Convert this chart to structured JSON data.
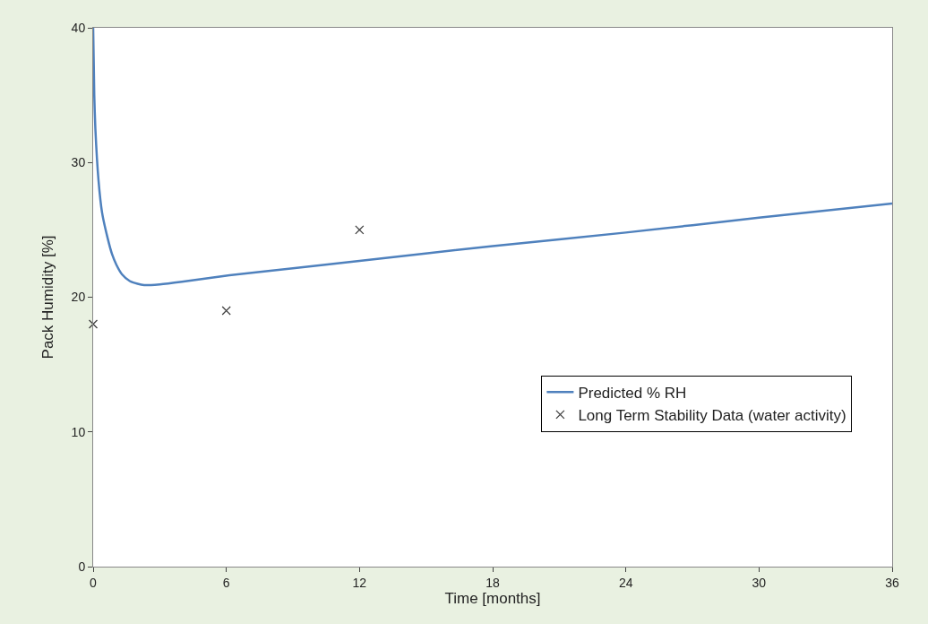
{
  "chart_data": {
    "type": "scatter",
    "xlabel": "Time [months]",
    "ylabel": "Pack Humidity [%]",
    "xlim": [
      0,
      36
    ],
    "xticks": [
      0,
      6,
      12,
      18,
      24,
      30,
      36
    ],
    "ylim": [
      0,
      40
    ],
    "yticks": [
      0,
      10,
      20,
      30,
      40
    ],
    "grid": false,
    "legend": "bottom right",
    "series": [
      {
        "name": "Predicted % RH",
        "type": "line",
        "color": "#4f81bd",
        "marker": "none",
        "line_style": "solid",
        "x": [
          0,
          0.05,
          0.1,
          0.24,
          0.4,
          0.65,
          0.85,
          1.05,
          1.3,
          1.65,
          2.0,
          2.3,
          2.6,
          3.0,
          4.0,
          6.0,
          9.0,
          12.0,
          18.0,
          24.0,
          30.0,
          36.0
        ],
        "values": [
          40,
          35,
          32.5,
          28.7,
          26.3,
          24.4,
          23.2,
          22.4,
          21.7,
          21.2,
          21.0,
          20.9,
          20.9,
          20.95,
          21.15,
          21.6,
          22.15,
          22.7,
          23.8,
          24.8,
          25.9,
          26.95
        ]
      },
      {
        "name": "Long Term Stability Data (water activity)",
        "color": "#404040",
        "marker": "cross",
        "x": [
          0,
          6,
          12
        ],
        "values": [
          18,
          19,
          25
        ]
      }
    ]
  }
}
